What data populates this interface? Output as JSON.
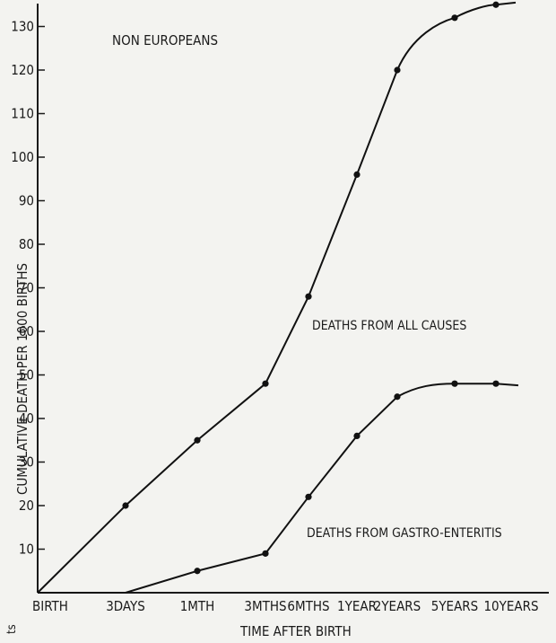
{
  "chart_data": {
    "type": "line",
    "title": "NON EUROPEANS",
    "xlabel": "TIME AFTER BIRTH",
    "ylabel": "CUMULATIVE DEATH PER 1000 BIRTHS",
    "categories": [
      "BIRTH",
      "3DAYS",
      "1MTH",
      "3MTHS",
      "6MTHS",
      "1YEAR",
      "2YEARS",
      "5YEARS",
      "10YEARS"
    ],
    "series": [
      {
        "name": "DEATHS FROM ALL CAUSES",
        "values": [
          0,
          20,
          35,
          48,
          68,
          96,
          120,
          132,
          135
        ]
      },
      {
        "name": "DEATHS FROM GASTRO-ENTERITIS",
        "values": [
          0,
          0,
          5,
          9,
          22,
          36,
          45,
          48,
          48
        ]
      }
    ],
    "ylim": [
      0,
      135
    ],
    "yticks": [
      10,
      20,
      30,
      40,
      50,
      60,
      70,
      80,
      90,
      100,
      110,
      120,
      130
    ],
    "grid": false,
    "edge_mark": "ts"
  }
}
